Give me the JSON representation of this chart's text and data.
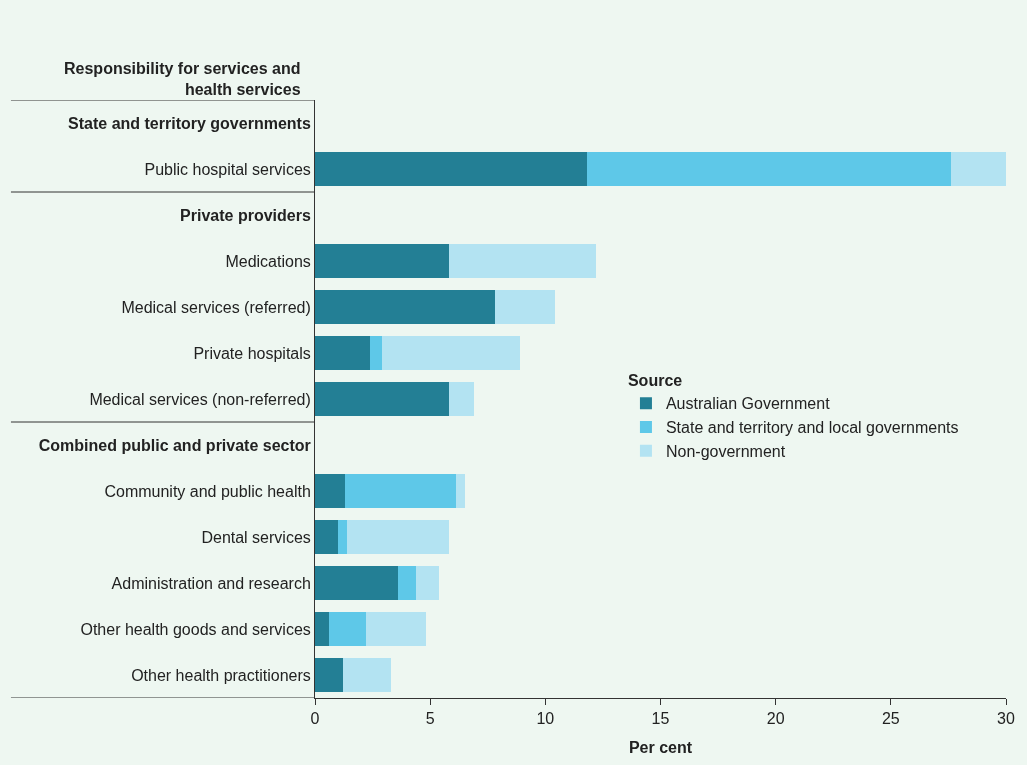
{
  "chart_data": {
    "type": "bar",
    "orientation": "horizontal",
    "stacked": true,
    "ylabel": "Responsibility for services and health services",
    "xlabel": "Per cent",
    "legend_title": "Source",
    "legend": "right",
    "grid": false,
    "categories": [
      "State and territory governments",
      "Public hospital services",
      "Private providers",
      "Medications",
      "Medical services (referred)",
      "Private hospitals",
      "Medical services (non-referred)",
      "Combined public and private sector",
      "Community and public health",
      "Dental services",
      "Administration and research",
      "Other health goods and services",
      "Other health practitioners"
    ],
    "series": [
      {
        "name": "Australian Government",
        "color": "#237f95",
        "values": [
          null,
          11.8,
          null,
          5.8,
          7.8,
          2.4,
          5.8,
          null,
          1.3,
          1.0,
          3.6,
          0.6,
          1.2
        ]
      },
      {
        "name": "State and territory and local governments",
        "color": "#5ec8e8",
        "values": [
          null,
          15.8,
          null,
          null,
          null,
          0.5,
          null,
          null,
          4.8,
          0.4,
          0.8,
          1.6,
          null
        ]
      },
      {
        "name": "Non-government",
        "color": "#b3e3f2",
        "values": [
          null,
          2.4,
          null,
          6.4,
          2.6,
          6.0,
          1.1,
          null,
          0.4,
          4.4,
          1.0,
          2.6,
          2.1
        ]
      }
    ],
    "xlim": [
      0,
      30
    ],
    "xticks": [
      0,
      5,
      10,
      15,
      20,
      25,
      30
    ]
  }
}
